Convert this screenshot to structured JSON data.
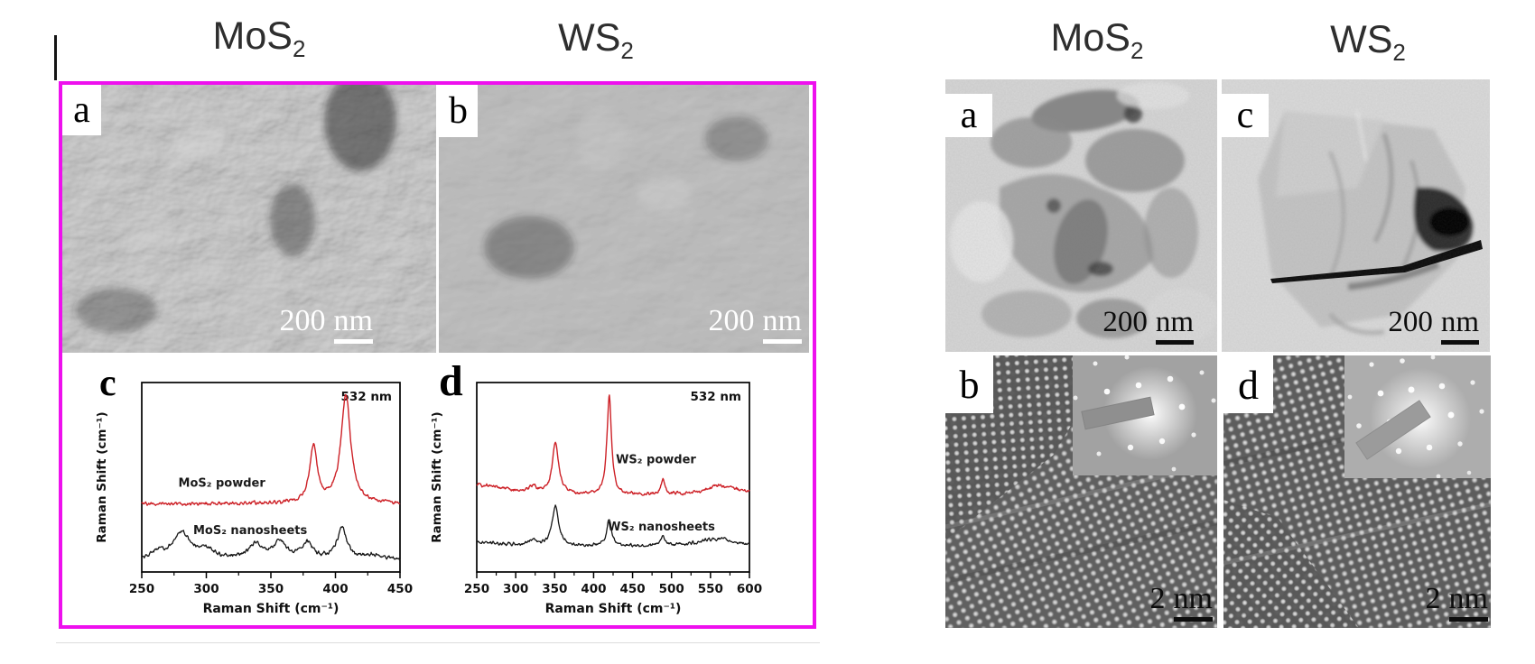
{
  "page": {
    "background": "#ffffff"
  },
  "left_figure": {
    "border_color": "#ee10ee",
    "column_titles": [
      {
        "main": "MoS",
        "sub": "2"
      },
      {
        "main": "WS",
        "sub": "2"
      }
    ],
    "panel_a": {
      "label": "a",
      "scalebar": {
        "value": "200",
        "unit": "nm"
      }
    },
    "panel_b": {
      "label": "b",
      "scalebar": {
        "value": "200",
        "unit": "nm"
      }
    }
  },
  "right_figure": {
    "column_titles": [
      {
        "main": "MoS",
        "sub": "2"
      },
      {
        "main": "WS",
        "sub": "2"
      }
    ],
    "panel_a": {
      "label": "a",
      "scalebar": {
        "value": "200",
        "unit": "nm"
      }
    },
    "panel_c": {
      "label": "c",
      "scalebar": {
        "value": "200",
        "unit": "nm"
      }
    },
    "panel_b": {
      "label": "b",
      "scalebar": {
        "value": "2",
        "unit": "nm"
      }
    },
    "panel_d": {
      "label": "d",
      "scalebar": {
        "value": "2",
        "unit": "nm"
      }
    }
  },
  "chart_data": [
    {
      "type": "line",
      "panel_label": "c",
      "annotation": "532 nm",
      "xlabel": "Raman Shift (cm⁻¹)",
      "ylabel": "Raman Shift (cm⁻¹)",
      "xlim": [
        250,
        450
      ],
      "xticks": [
        250,
        300,
        350,
        400,
        450
      ],
      "minor_tick_step": 25,
      "grid": false,
      "legend_position": "inline",
      "series": [
        {
          "name": "MoS₂ powder",
          "color": "#cd2127",
          "baseline_frac": 0.36,
          "noise_amp": 0.012,
          "label_x": 312,
          "label_frac": 0.45,
          "peaks": [
            {
              "center": 383,
              "height_frac": 0.3,
              "hwhm": 3.5
            },
            {
              "center": 408,
              "height_frac": 0.57,
              "hwhm": 4.5
            }
          ]
        },
        {
          "name": "MoS₂ nanosheets",
          "color": "#161616",
          "baseline_frac": 0.065,
          "noise_amp": 0.014,
          "label_x": 334,
          "label_frac": 0.2,
          "peaks": [
            {
              "center": 262,
              "height_frac": 0.03,
              "hwhm": 5
            },
            {
              "center": 281,
              "height_frac": 0.14,
              "hwhm": 9
            },
            {
              "center": 301,
              "height_frac": 0.04,
              "hwhm": 7
            },
            {
              "center": 338,
              "height_frac": 0.075,
              "hwhm": 7
            },
            {
              "center": 357,
              "height_frac": 0.085,
              "hwhm": 6
            },
            {
              "center": 378,
              "height_frac": 0.085,
              "hwhm": 5
            },
            {
              "center": 405,
              "height_frac": 0.165,
              "hwhm": 4.5
            },
            {
              "center": 430,
              "height_frac": 0.02,
              "hwhm": 8
            }
          ]
        }
      ]
    },
    {
      "type": "line",
      "panel_label": "d",
      "annotation": "532 nm",
      "xlabel": "Raman Shift (cm⁻¹)",
      "ylabel": "Raman Shift (cm⁻¹)",
      "xlim": [
        250,
        600
      ],
      "xticks": [
        250,
        300,
        350,
        400,
        450,
        500,
        550,
        600
      ],
      "minor_tick_step": 25,
      "grid": false,
      "legend_position": "inline",
      "series": [
        {
          "name": "WS₂ powder",
          "color": "#cd2127",
          "baseline_frac": 0.4,
          "noise_amp": 0.012,
          "label_x": 480,
          "label_frac": 0.575,
          "peaks": [
            {
              "center": 250,
              "height_frac": 0.06,
              "hwhm": 45
            },
            {
              "center": 322,
              "height_frac": 0.035,
              "hwhm": 6
            },
            {
              "center": 351,
              "height_frac": 0.27,
              "hwhm": 5
            },
            {
              "center": 420,
              "height_frac": 0.52,
              "hwhm": 3.5
            },
            {
              "center": 489,
              "height_frac": 0.08,
              "hwhm": 3
            },
            {
              "center": 565,
              "height_frac": 0.055,
              "hwhm": 28
            }
          ]
        },
        {
          "name": "WS₂ nanosheets",
          "color": "#161616",
          "baseline_frac": 0.135,
          "noise_amp": 0.012,
          "label_x": 487,
          "label_frac": 0.22,
          "peaks": [
            {
              "center": 250,
              "height_frac": 0.02,
              "hwhm": 40
            },
            {
              "center": 322,
              "height_frac": 0.03,
              "hwhm": 6
            },
            {
              "center": 351,
              "height_frac": 0.21,
              "hwhm": 5
            },
            {
              "center": 420,
              "height_frac": 0.145,
              "hwhm": 3.5
            },
            {
              "center": 489,
              "height_frac": 0.05,
              "hwhm": 3
            },
            {
              "center": 558,
              "height_frac": 0.04,
              "hwhm": 28
            }
          ]
        }
      ]
    }
  ]
}
